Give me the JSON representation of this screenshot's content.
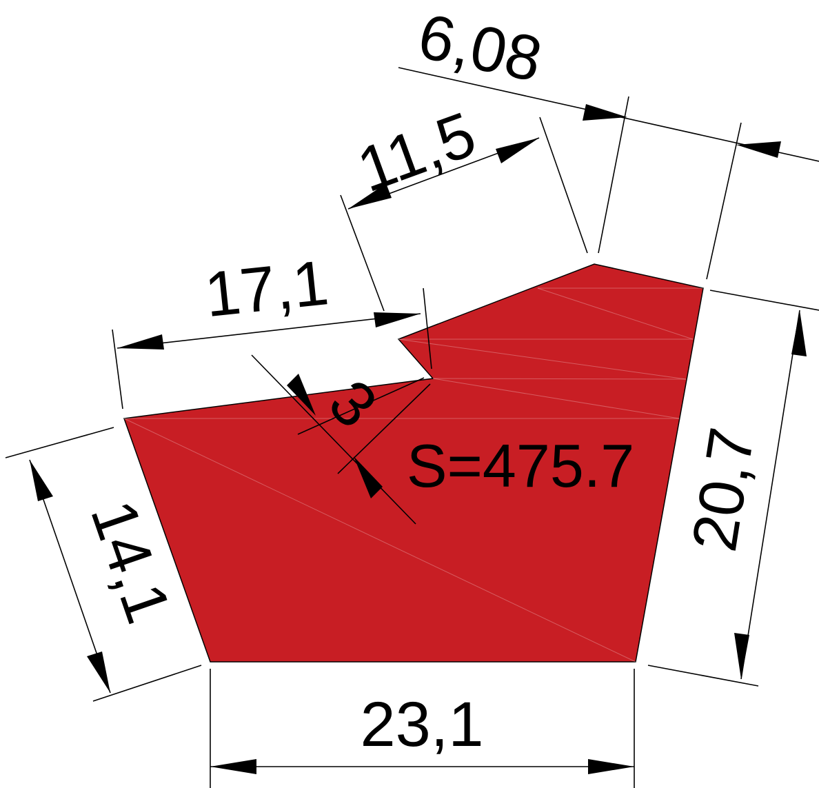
{
  "shape": {
    "fill_color": "#c81e24",
    "area_label": "S=475.7"
  },
  "dimensions": {
    "top_small": "6,08",
    "top_mid": "11,5",
    "top_left": "17,1",
    "notch": "3",
    "left_side": "14,1",
    "right_side": "20,7",
    "bottom": "23,1"
  }
}
